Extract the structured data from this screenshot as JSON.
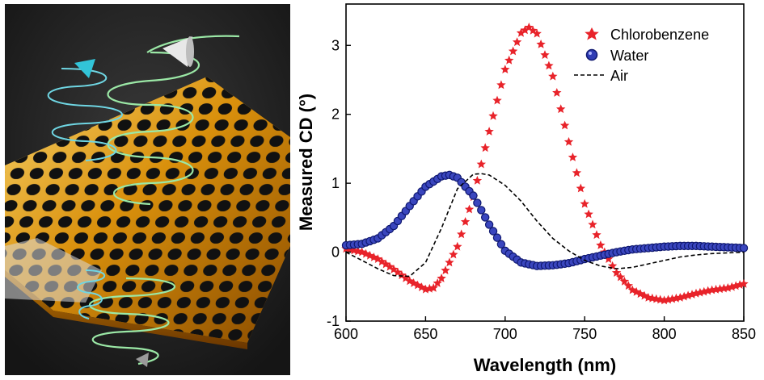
{
  "illustration": {
    "description_icon": "perforated-gold-film-icon",
    "colors": {
      "gold": "#d9900c",
      "dark": "#1b1b1b",
      "beam_cyan": "#32c4d8",
      "beam_green": "#9be8a6",
      "beam_white": "#e8e8e8"
    }
  },
  "chart_data": {
    "type": "line",
    "xlabel": "Wavelength (nm)",
    "ylabel": "Measured CD (°)",
    "xlim": [
      600,
      850
    ],
    "ylim": [
      -1,
      3.6
    ],
    "xticks": [
      600,
      650,
      700,
      750,
      800,
      850
    ],
    "yticks": [
      -1,
      0,
      1,
      2,
      3
    ],
    "legend_position": "top-right",
    "grid": false,
    "series": [
      {
        "name": "Chlorobenzene",
        "marker": "star",
        "color": "#e8232a",
        "x": [
          600,
          610,
          620,
          630,
          640,
          650,
          655,
          660,
          670,
          680,
          690,
          700,
          710,
          715,
          720,
          730,
          740,
          750,
          760,
          770,
          780,
          790,
          800,
          810,
          820,
          830,
          840,
          850
        ],
        "y": [
          0.05,
          0.0,
          -0.1,
          -0.25,
          -0.42,
          -0.54,
          -0.52,
          -0.38,
          0.08,
          0.8,
          1.75,
          2.65,
          3.18,
          3.26,
          3.17,
          2.55,
          1.6,
          0.7,
          0.1,
          -0.3,
          -0.55,
          -0.66,
          -0.7,
          -0.66,
          -0.6,
          -0.55,
          -0.52,
          -0.46
        ]
      },
      {
        "name": "Water",
        "marker": "circle",
        "color": "#1c2a9e",
        "x": [
          600,
          610,
          620,
          630,
          640,
          650,
          660,
          665,
          670,
          680,
          690,
          700,
          710,
          720,
          730,
          740,
          750,
          760,
          770,
          780,
          790,
          800,
          810,
          820,
          830,
          840,
          850
        ],
        "y": [
          0.1,
          0.12,
          0.2,
          0.38,
          0.67,
          0.95,
          1.1,
          1.12,
          1.08,
          0.82,
          0.4,
          0.02,
          -0.15,
          -0.2,
          -0.19,
          -0.16,
          -0.1,
          -0.05,
          0.0,
          0.04,
          0.06,
          0.08,
          0.09,
          0.09,
          0.08,
          0.07,
          0.06
        ]
      },
      {
        "name": "Air",
        "marker": "dash",
        "color": "#000000",
        "x": [
          600,
          610,
          620,
          630,
          640,
          650,
          660,
          670,
          680,
          685,
          690,
          700,
          710,
          720,
          730,
          740,
          750,
          760,
          770,
          780,
          790,
          800,
          810,
          820,
          830,
          840,
          850
        ],
        "y": [
          0.0,
          -0.12,
          -0.24,
          -0.34,
          -0.35,
          -0.15,
          0.35,
          0.92,
          1.13,
          1.14,
          1.12,
          0.97,
          0.74,
          0.45,
          0.2,
          0.02,
          -0.12,
          -0.2,
          -0.24,
          -0.22,
          -0.17,
          -0.12,
          -0.07,
          -0.04,
          -0.02,
          -0.01,
          0.0
        ]
      }
    ]
  }
}
